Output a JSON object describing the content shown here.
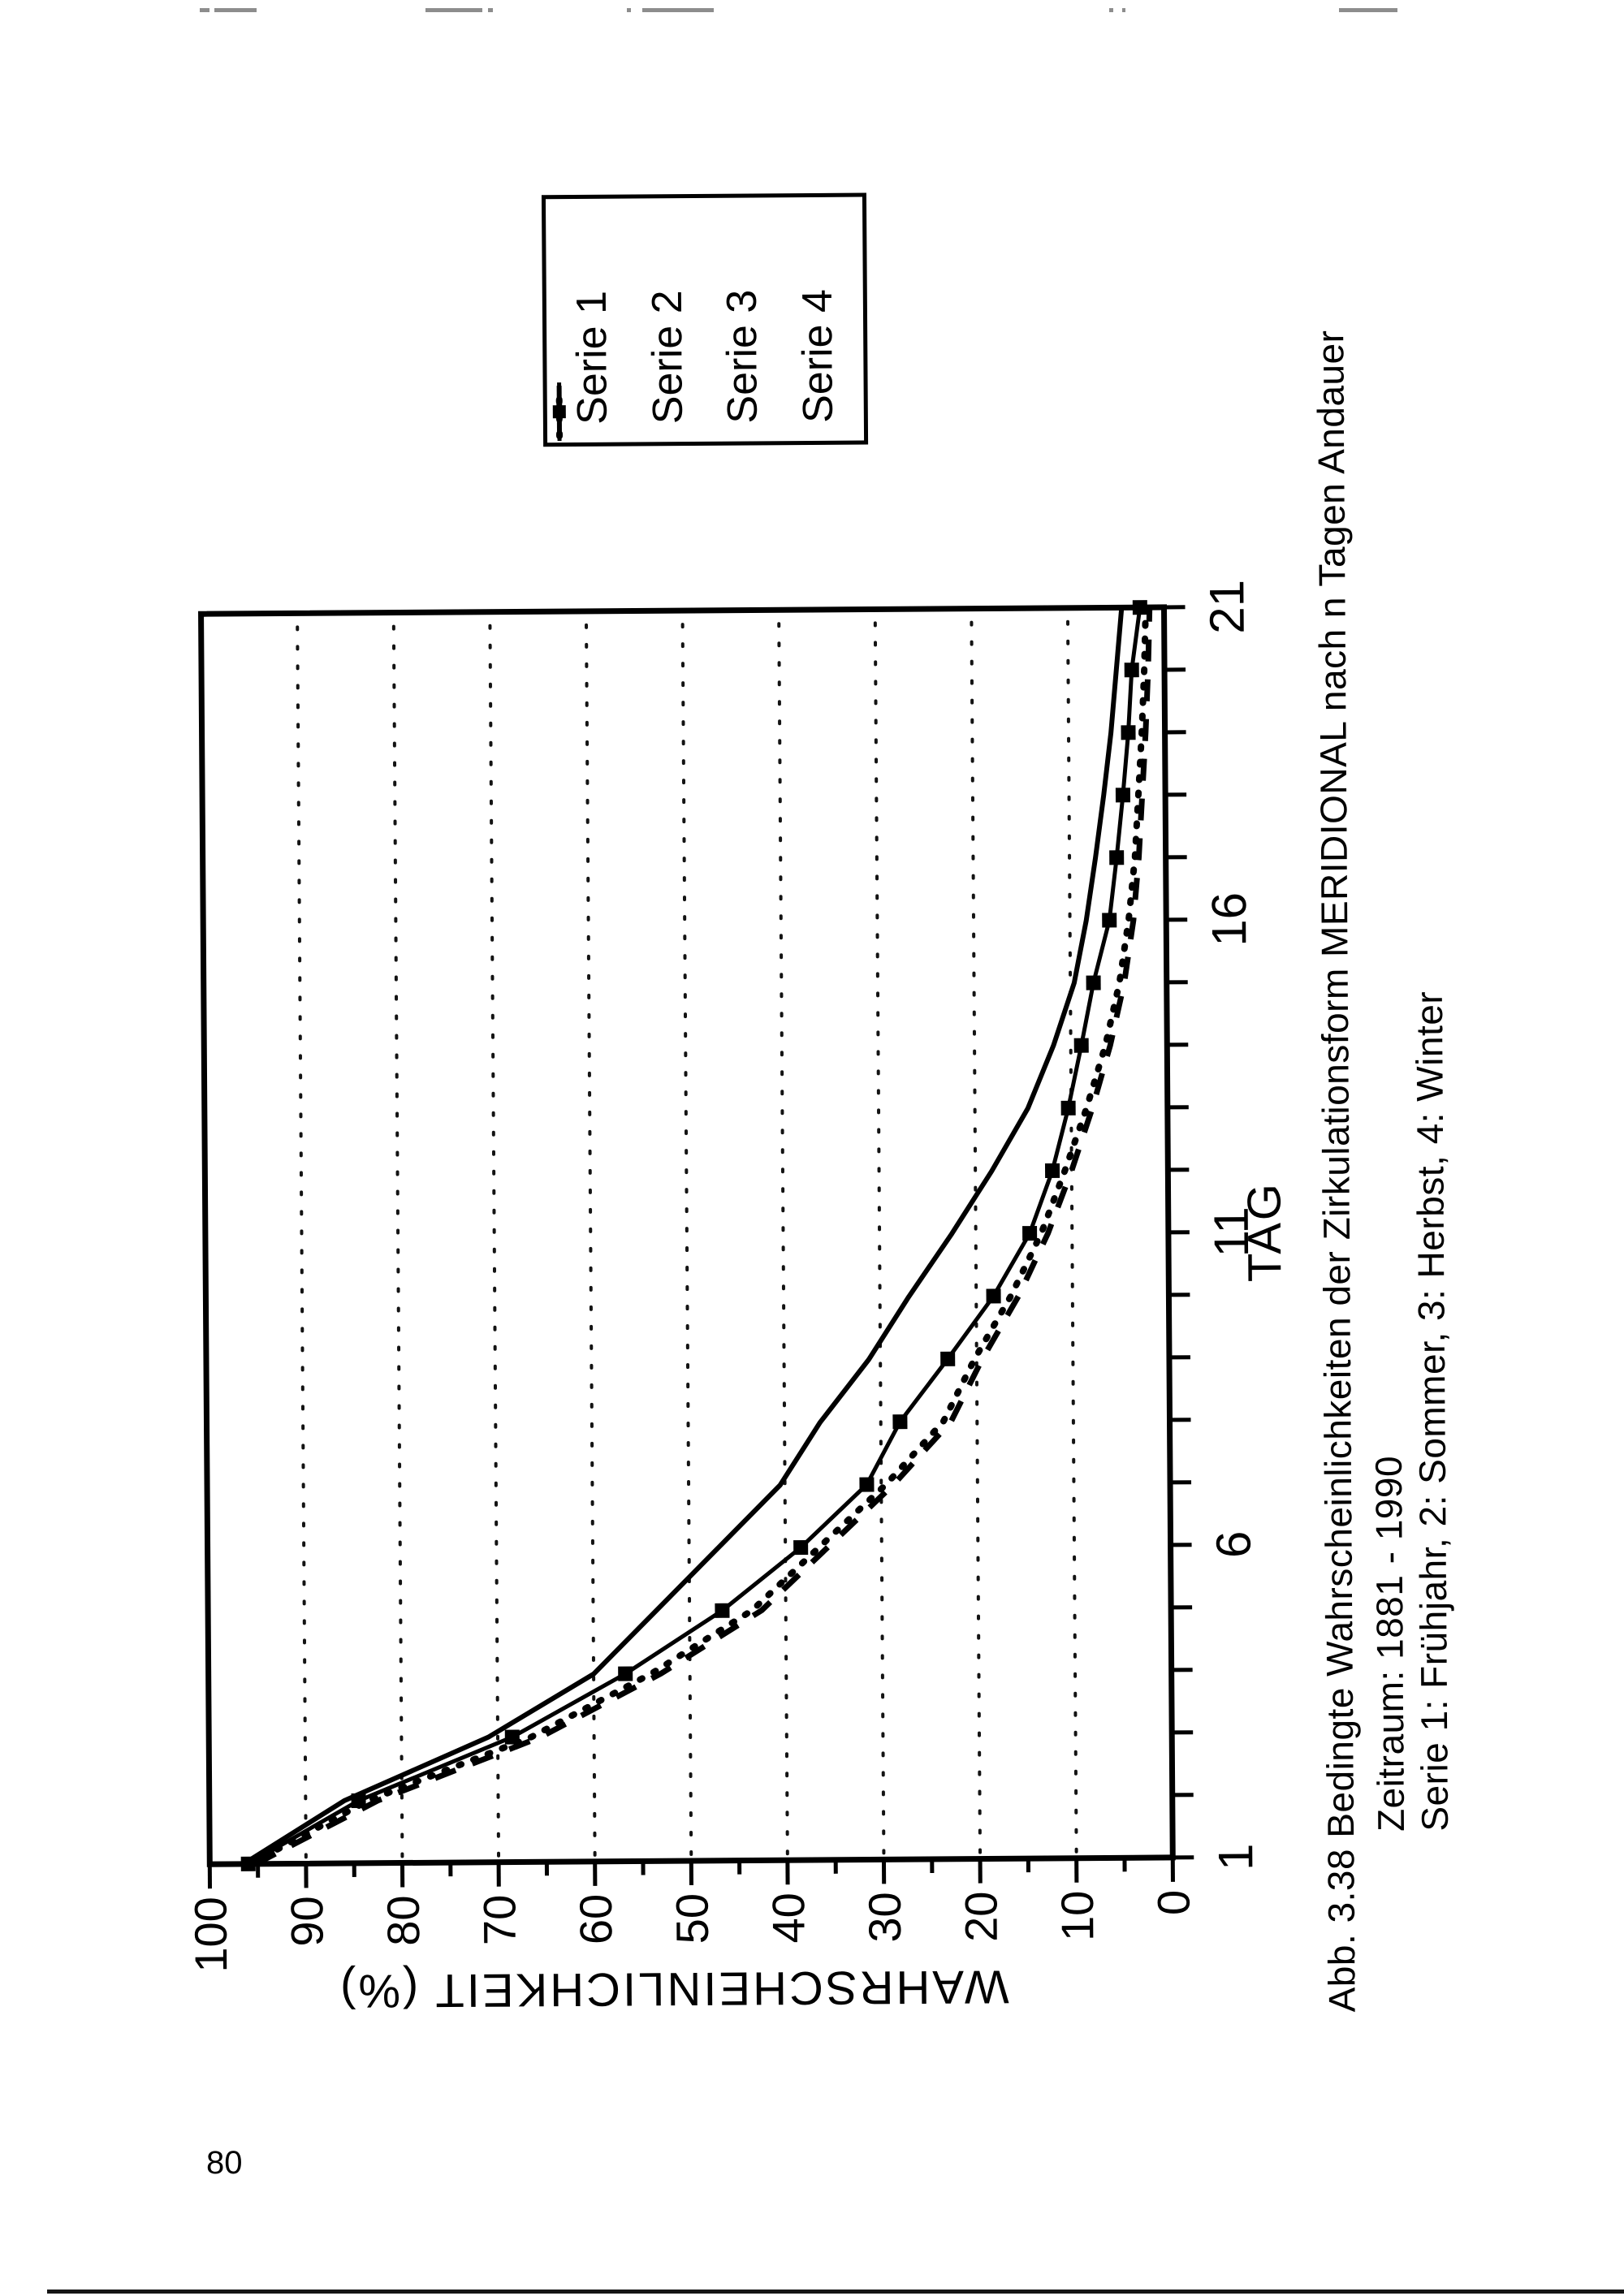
{
  "page": {
    "number": "80"
  },
  "colors": {
    "ink": "#000000",
    "paper": "#ffffff",
    "scan_artifact": "#8d8d8d"
  },
  "figure": {
    "caption": {
      "line1": "Abb. 3.38 Bedingte Wahrscheinlichkeiten der Zirkulationsform MERIDIONAL nach n Tagen Andauer",
      "line2": "Zeitraum: 1881 - 1990",
      "line3": "Serie 1: Frühjahr, 2: Sommer, 3: Herbst, 4: Winter"
    },
    "legend": {
      "items": [
        {
          "label": "Serie 1",
          "sample": "solid-line"
        },
        {
          "label": "Serie 2",
          "sample": "dotted-line"
        },
        {
          "label": "Serie 3",
          "sample": "short-dash"
        },
        {
          "label": "Serie 4",
          "sample": "line-with-square-marker"
        }
      ]
    },
    "chart_data": {
      "type": "line",
      "title": "",
      "xlabel": "TAG",
      "ylabel": "WAHRSCHEINLICHKEIT (%)",
      "xlim": [
        1,
        21
      ],
      "ylim": [
        0,
        100
      ],
      "x": [
        1,
        2,
        3,
        4,
        5,
        6,
        7,
        8,
        9,
        10,
        11,
        12,
        13,
        14,
        15,
        16,
        17,
        18,
        19,
        20,
        21
      ],
      "xticks_labeled": [
        1,
        6,
        11,
        16,
        21
      ],
      "yticks": [
        100,
        90,
        80,
        70,
        60,
        50,
        40,
        30,
        20,
        10,
        0
      ],
      "grid": "horizontal dotted lines at every 10%",
      "legend_position": "right of plot",
      "orientation_note": "figure printed landscape, rotated 90deg CCW on portrait page",
      "series": [
        {
          "name": "Serie 1",
          "line": "solid",
          "marker": "none",
          "values": [
            96.5,
            86,
            71,
            60,
            53.5,
            47,
            40.5,
            36.3,
            31.2,
            27,
            22.5,
            18.3,
            14.5,
            11.8,
            9.6,
            8.3,
            7.3,
            6.4,
            5.6,
            5.0,
            4.4
          ]
        },
        {
          "name": "Serie 2",
          "line": "dotted",
          "marker": "none",
          "values": [
            95.8,
            83.5,
            66.5,
            54,
            43.5,
            36.5,
            29.5,
            23.5,
            20.2,
            16.4,
            13.2,
            10.7,
            8.4,
            6.4,
            4.9,
            3.9,
            3.2,
            2.8,
            2.4,
            2.1,
            1.9
          ]
        },
        {
          "name": "Serie 3",
          "line": "dashed",
          "marker": "none",
          "values": [
            95.2,
            82.5,
            65.5,
            53,
            42.5,
            35.6,
            28.7,
            22.7,
            19.4,
            15.6,
            12.5,
            10.0,
            7.8,
            5.9,
            4.4,
            3.4,
            2.8,
            2.4,
            2.0,
            1.7,
            1.5
          ]
        },
        {
          "name": "Serie 4",
          "line": "solid",
          "marker": "square",
          "values": [
            96,
            84.5,
            68.5,
            56.7,
            46.6,
            38.4,
            31.5,
            28,
            23,
            18.2,
            14.4,
            12.0,
            10.3,
            8.9,
            7.6,
            5.9,
            5.1,
            4.4,
            3.8,
            3.4,
            2.5
          ]
        }
      ]
    }
  }
}
